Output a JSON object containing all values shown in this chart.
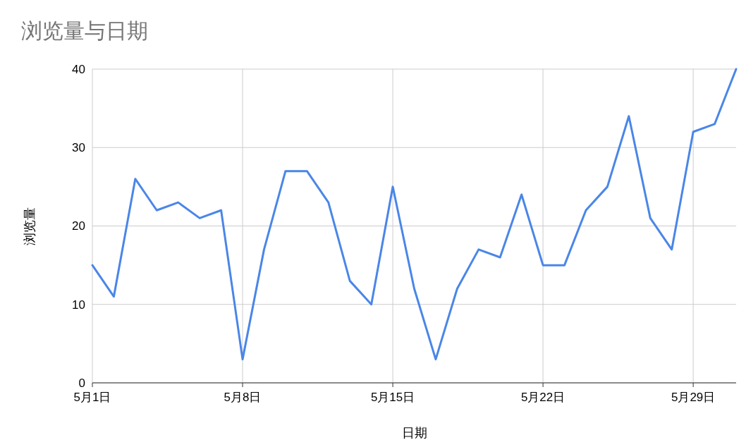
{
  "chart_data": {
    "type": "line",
    "title": "浏览量与日期",
    "xlabel": "日期",
    "ylabel": "浏览量",
    "x": [
      "--05-01",
      "--05-02",
      "--05-03",
      "--05-04",
      "--05-05",
      "--05-06",
      "--05-07",
      "--05-08",
      "--05-09",
      "--05-10",
      "--05-11",
      "--05-12",
      "--05-13",
      "--05-14",
      "--05-15",
      "--05-16",
      "--05-17",
      "--05-18",
      "--05-19",
      "--05-20",
      "--05-21",
      "--05-22",
      "--05-23",
      "--05-24",
      "--05-25",
      "--05-26",
      "--05-27",
      "--05-28",
      "--05-29",
      "--05-30",
      "--05-31"
    ],
    "series": [
      {
        "color": "#4a86e8",
        "values": [
          15,
          11,
          26,
          22,
          23,
          21,
          22,
          3,
          17,
          27,
          27,
          23,
          13,
          10,
          25,
          12,
          3,
          12,
          17,
          16,
          24,
          15,
          15,
          22,
          25,
          34,
          21,
          17,
          32,
          33,
          40
        ]
      }
    ],
    "xlim": [
      "--05-01",
      "--05-31"
    ],
    "xticks": [
      {
        "value": "--05-01",
        "label": "5月1日"
      },
      {
        "value": "--05-08",
        "label": "5月8日"
      },
      {
        "value": "--05-15",
        "label": "5月15日"
      },
      {
        "value": "--05-22",
        "label": "5月22日"
      },
      {
        "value": "--05-29",
        "label": "5月29日"
      }
    ],
    "ylim": [
      0,
      40
    ],
    "yticks": [
      0,
      10,
      20,
      30,
      40
    ],
    "grid": true,
    "marker": "none",
    "line_style": "solid"
  }
}
